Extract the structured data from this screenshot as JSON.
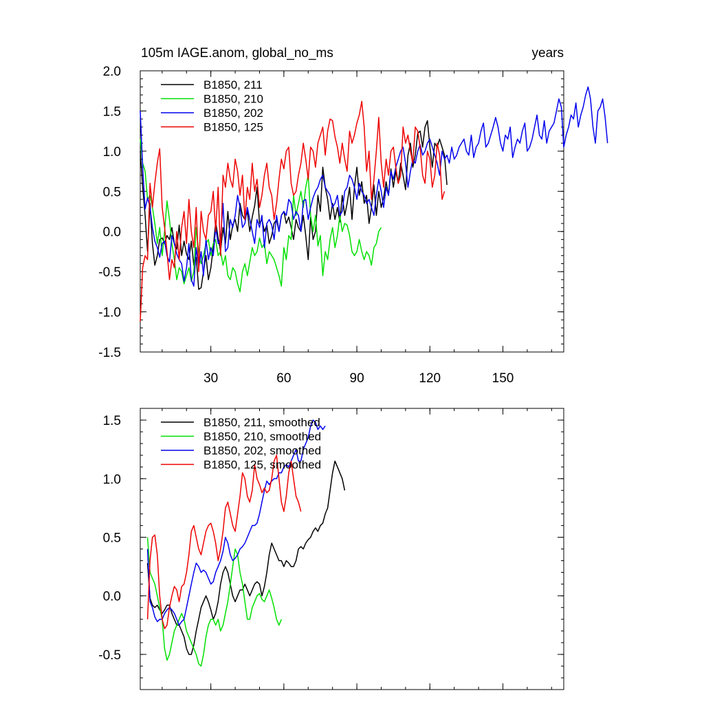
{
  "figure": {
    "title_left": "105m IAGE.anom, global_no_ms",
    "title_right": "years",
    "colors": {
      "211": "#000000",
      "210": "#00e000",
      "202": "#0000ee",
      "125": "#ee0000"
    }
  },
  "chart_data": [
    {
      "type": "line",
      "title": "105m IAGE.anom, global_no_ms",
      "right_title": "years",
      "xlim": [
        1,
        175
      ],
      "ylim": [
        -1.5,
        2.0
      ],
      "x_ticks": [
        30,
        60,
        90,
        120,
        150
      ],
      "x_tick_labels": [
        "30",
        "60",
        "90",
        "120",
        "150"
      ],
      "y_ticks": [
        -1.5,
        -1.0,
        -0.5,
        0.0,
        0.5,
        1.0,
        1.5,
        2.0
      ],
      "y_tick_labels": [
        "-1.5",
        "-1.0",
        "-0.5",
        "0.0",
        "0.5",
        "1.0",
        "1.5",
        "2.0"
      ],
      "legend": [
        {
          "label": "B1850, 211",
          "color": "#000000"
        },
        {
          "label": "B1850, 210",
          "color": "#00e000"
        },
        {
          "label": "B1850, 202",
          "color": "#0000ee"
        },
        {
          "label": "B1850, 125",
          "color": "#ee0000"
        }
      ],
      "legend_position": "top-left",
      "series": [
        {
          "name": "B1850, 211",
          "color": "#000000",
          "x_start": 1,
          "values": [
            1.0,
            0.55,
            0.2,
            -0.25,
            0.35,
            -0.15,
            -0.42,
            -0.3,
            -0.1,
            -0.08,
            -0.15,
            -0.05,
            -0.1,
            0.05,
            -0.15,
            -0.22,
            0.08,
            -0.3,
            -0.12,
            -0.28,
            -0.35,
            -0.12,
            -0.42,
            -0.32,
            -0.72,
            -0.7,
            -0.5,
            -0.3,
            -0.6,
            -0.45,
            -0.2,
            0.12,
            -0.08,
            -0.25,
            0.05,
            -0.15,
            0.25,
            -0.1,
            0.08,
            0.15,
            0.0,
            0.35,
            0.2,
            0.15,
            0.25,
            0.0,
            0.18,
            0.32,
            0.55,
            0.1,
            0.15,
            0.0,
            0.08,
            -0.15,
            -0.05,
            0.1,
            0.15,
            0.0,
            0.2,
            0.25,
            0.1,
            0.18,
            0.05,
            -0.1,
            0.15,
            0.05,
            0.0,
            0.2,
            -0.05,
            -0.35,
            0.18,
            -0.1,
            0.0,
            0.45,
            0.25,
            0.8,
            0.55,
            0.4,
            0.15,
            0.35,
            0.15,
            0.3,
            0.12,
            0.45,
            0.2,
            0.35,
            0.55,
            0.15,
            0.55,
            0.8,
            0.45,
            0.62,
            0.35,
            0.45,
            0.1,
            0.3,
            0.58,
            0.2,
            0.5,
            0.3,
            0.42,
            0.62,
            0.45,
            0.78,
            0.55,
            0.75,
            0.6,
            0.85,
            0.7,
            0.52,
            0.95,
            1.1,
            0.8,
            0.95,
            1.22,
            1.25,
            1.05,
            1.3,
            1.38,
            1.05,
            0.8,
            1.1,
            1.05,
            1.15,
            1.05,
            0.95,
            0.58
          ]
        },
        {
          "name": "B1850, 210",
          "color": "#00e000",
          "x_start": 1,
          "values": [
            1.15,
            0.85,
            0.75,
            0.4,
            0.45,
            0.3,
            0.1,
            -0.15,
            0.05,
            -0.3,
            0.0,
            0.38,
            0.15,
            -0.15,
            -0.35,
            -0.6,
            -0.45,
            -0.5,
            -0.65,
            -0.55,
            -0.45,
            -0.62,
            -0.5,
            0.05,
            -0.25,
            -0.4,
            -0.3,
            -0.15,
            -0.1,
            -0.3,
            -0.15,
            -0.1,
            -0.3,
            -0.25,
            -0.42,
            -0.3,
            -0.55,
            -0.6,
            -0.45,
            -0.5,
            -0.65,
            -0.75,
            -0.5,
            -0.4,
            -0.55,
            -0.38,
            -0.2,
            -0.3,
            -0.25,
            -0.08,
            -0.2,
            -0.15,
            -0.4,
            -0.25,
            -0.3,
            -0.35,
            -0.45,
            -0.55,
            -0.68,
            -0.2,
            -0.35,
            -0.05,
            -0.1,
            0.45,
            0.2,
            0.35,
            0.5,
            0.3,
            0.55,
            0.7,
            0.2,
            0.0,
            0.2,
            -0.18,
            -0.05,
            -0.55,
            -0.25,
            -0.35,
            -0.1,
            0.05,
            -0.2,
            -0.05,
            0.2,
            0.0,
            0.1,
            0.08,
            -0.05,
            -0.25,
            -0.3,
            -0.25,
            -0.1,
            -0.25,
            -0.35,
            -0.25,
            -0.3,
            -0.42,
            -0.2,
            -0.15,
            0.0,
            0.05
          ]
        },
        {
          "name": "B1850, 202",
          "color": "#0000ee",
          "x_start": 1,
          "values": [
            1.5,
            0.8,
            0.28,
            0.42,
            0.3,
            0.05,
            -0.12,
            -0.2,
            -0.32,
            -0.15,
            -0.12,
            -0.3,
            -0.38,
            -0.05,
            -0.15,
            -0.28,
            -0.35,
            -0.4,
            -0.62,
            -0.45,
            -0.15,
            -0.6,
            -0.68,
            -0.2,
            -0.45,
            -0.25,
            -0.55,
            -0.1,
            -0.35,
            -0.2,
            -0.3,
            0.05,
            -0.15,
            -0.1,
            0.35,
            -0.25,
            -0.2,
            0.15,
            0.05,
            0.2,
            0.45,
            0.3,
            0.05,
            0.1,
            0.3,
            0.15,
            0.0,
            -0.15,
            0.15,
            0.05,
            0.2,
            -0.2,
            0.1,
            0.15,
            0.08,
            -0.1,
            0.2,
            0.0,
            0.2,
            0.25,
            0.2,
            0.4,
            0.35,
            0.15,
            0.25,
            0.2,
            0.0,
            0.38,
            0.4,
            0.15,
            0.3,
            0.42,
            0.5,
            0.55,
            0.65,
            0.7,
            0.55,
            0.5,
            0.45,
            0.3,
            0.35,
            0.45,
            0.2,
            0.25,
            0.5,
            0.55,
            0.7,
            0.65,
            0.55,
            0.4,
            0.6,
            0.5,
            0.45,
            0.35,
            0.4,
            0.3,
            0.2,
            0.45,
            0.65,
            0.5,
            0.3,
            0.55,
            0.45,
            0.75,
            0.65,
            0.8,
            0.9,
            1.0,
            1.05,
            0.85,
            0.55,
            0.75,
            0.9,
            0.85,
            1.0,
            1.08,
            0.95,
            1.0,
            1.1,
            1.15,
            1.05,
            0.95,
            0.85,
            0.7,
            1.0,
            0.9,
            0.95,
            0.85,
            1.05,
            0.9,
            0.95,
            1.05,
            1.1,
            1.15,
            1.0,
            0.95,
            1.2,
            0.92,
            1.05,
            1.1,
            1.25,
            1.35,
            1.05,
            1.1,
            1.2,
            1.3,
            1.42,
            1.3,
            1.1,
            1.0,
            1.2,
            1.15,
            1.3,
            0.92,
            1.05,
            1.15,
            1.1,
            1.25,
            1.35,
            1.0,
            1.05,
            1.15,
            1.3,
            1.45,
            1.2,
            1.15,
            1.38,
            1.1,
            1.25,
            1.3,
            1.35,
            1.5,
            1.65,
            1.55,
            1.05,
            1.2,
            1.3,
            1.45,
            1.4,
            1.6,
            1.3,
            1.45,
            1.55,
            1.7,
            1.8,
            1.65,
            1.3,
            1.1,
            1.5,
            1.55,
            1.65,
            1.42,
            1.1
          ]
        },
        {
          "name": "B1850, 125",
          "color": "#ee0000",
          "x_start": 1,
          "values": [
            -1.12,
            -0.45,
            -0.3,
            -0.35,
            0.6,
            0.3,
            0.6,
            0.85,
            1.03,
            0.3,
            0.05,
            -0.25,
            -0.6,
            -0.35,
            -0.45,
            0.0,
            -0.35,
            0.05,
            0.25,
            -0.15,
            0.4,
            0.0,
            -0.2,
            0.3,
            -0.5,
            0.25,
            0.0,
            -0.1,
            0.2,
            0.25,
            0.5,
            0.0,
            0.55,
            -0.3,
            0.7,
            0.55,
            0.85,
            0.65,
            0.55,
            0.9,
            0.75,
            0.45,
            0.7,
            0.15,
            0.55,
            0.4,
            0.85,
            0.5,
            0.65,
            0.3,
            0.45,
            0.7,
            0.85,
            0.55,
            0.45,
            0.15,
            0.35,
            0.65,
            0.9,
            0.78,
            1.0,
            1.05,
            0.6,
            0.45,
            0.5,
            0.7,
            0.85,
            1.1,
            0.9,
            0.65,
            1.05,
            1.0,
            0.8,
            1.1,
            1.2,
            1.3,
            0.95,
            1.25,
            1.4,
            1.38,
            1.18,
            1.05,
            0.85,
            1.1,
            0.9,
            0.75,
            1.25,
            1.1,
            1.2,
            1.35,
            1.45,
            1.62,
            1.3,
            0.75,
            1.0,
            0.4,
            0.65,
            1.0,
            1.42,
            0.85,
            0.55,
            0.9,
            0.7,
            1.0,
            1.05,
            0.8,
            0.6,
            0.7,
            1.3,
            1.1,
            1.2,
            1.0,
            0.85,
            1.3,
            1.25,
            1.05,
            0.7,
            0.6,
            1.0,
            0.9,
            0.55,
            0.7,
            1.1,
            0.95,
            0.4,
            0.5
          ]
        }
      ]
    },
    {
      "type": "line",
      "title": "",
      "xlim": [
        1,
        175
      ],
      "ylim": [
        -0.8,
        1.6
      ],
      "x_ticks": [
        30,
        60,
        90,
        120,
        150
      ],
      "x_tick_labels": [],
      "y_ticks": [
        -0.5,
        0.0,
        0.5,
        1.0,
        1.5
      ],
      "y_tick_labels": [
        "-0.5",
        "0.0",
        "0.5",
        "1.0",
        "1.5"
      ],
      "legend": [
        {
          "label": "B1850, 211, smoothed",
          "color": "#000000"
        },
        {
          "label": "B1850, 210, smoothed",
          "color": "#00e000"
        },
        {
          "label": "B1850, 202, smoothed",
          "color": "#0000ee"
        },
        {
          "label": "B1850, 125, smoothed",
          "color": "#ee0000"
        }
      ],
      "legend_position": "top-left",
      "series": [
        {
          "name": "B1850, 211, smoothed",
          "color": "#000000",
          "x_start": 4,
          "values": [
            0.28,
            -0.02,
            -0.08,
            -0.1,
            -0.08,
            -0.12,
            -0.15,
            -0.12,
            -0.08,
            -0.08,
            -0.15,
            -0.2,
            -0.25,
            -0.25,
            -0.3,
            -0.35,
            -0.45,
            -0.5,
            -0.5,
            -0.42,
            -0.3,
            -0.2,
            -0.1,
            -0.05,
            -0.0,
            -0.05,
            -0.12,
            -0.2,
            -0.15,
            -0.05,
            0.1,
            0.2,
            0.25,
            0.2,
            0.1,
            0.0,
            -0.05,
            0.0,
            0.05,
            0.05,
            0.1,
            0.05,
            0.0,
            0.05,
            0.1,
            0.12,
            0.1,
            0.0,
            0.08,
            0.2,
            0.35,
            0.45,
            0.4,
            0.35,
            0.3,
            0.3,
            0.25,
            0.3,
            0.28,
            0.25,
            0.25,
            0.3,
            0.4,
            0.42,
            0.4,
            0.45,
            0.48,
            0.5,
            0.55,
            0.58,
            0.55,
            0.6,
            0.62,
            0.7,
            0.75,
            0.9,
            1.05,
            1.15,
            1.1,
            1.05,
            1.0,
            0.9
          ]
        },
        {
          "name": "B1850, 210, smoothed",
          "color": "#00e000",
          "x_start": 4,
          "values": [
            0.5,
            0.2,
            0.15,
            0.1,
            0.0,
            -0.1,
            -0.2,
            -0.45,
            -0.55,
            -0.5,
            -0.4,
            -0.3,
            -0.25,
            -0.2,
            -0.15,
            -0.2,
            -0.3,
            -0.35,
            -0.4,
            -0.45,
            -0.5,
            -0.58,
            -0.6,
            -0.5,
            -0.35,
            -0.25,
            -0.2,
            -0.2,
            -0.25,
            -0.2,
            -0.3,
            -0.25,
            -0.15,
            -0.05,
            0.1,
            0.25,
            0.4,
            0.35,
            0.2,
            0.1,
            -0.05,
            -0.2,
            -0.2,
            -0.1,
            -0.05,
            0.0,
            0.02,
            -0.03,
            -0.05,
            0.0,
            0.05,
            -0.02,
            -0.1,
            -0.2,
            -0.25,
            -0.2
          ]
        },
        {
          "name": "B1850, 202, smoothed",
          "color": "#0000ee",
          "x_start": 4,
          "values": [
            0.4,
            -0.05,
            -0.1,
            -0.18,
            -0.22,
            -0.2,
            -0.2,
            -0.15,
            -0.12,
            -0.1,
            -0.12,
            -0.15,
            -0.2,
            -0.25,
            -0.22,
            -0.2,
            -0.1,
            0.0,
            0.1,
            0.2,
            0.28,
            0.25,
            0.2,
            0.22,
            0.2,
            0.15,
            0.1,
            0.12,
            0.2,
            0.25,
            0.3,
            0.38,
            0.5,
            0.45,
            0.35,
            0.3,
            0.32,
            0.35,
            0.4,
            0.42,
            0.45,
            0.5,
            0.55,
            0.6,
            0.6,
            0.62,
            0.7,
            0.8,
            0.9,
            0.98,
            0.95,
            0.98,
            1.0,
            1.0,
            1.05,
            1.05,
            1.1,
            1.12,
            1.1,
            1.15,
            1.2,
            1.25,
            1.15,
            1.15,
            1.25,
            1.3,
            1.35,
            1.45,
            1.5,
            1.48,
            1.42,
            1.45,
            1.42,
            1.45
          ]
        },
        {
          "name": "B1850, 125, smoothed",
          "color": "#ee0000",
          "x_start": 4,
          "values": [
            -0.2,
            0.3,
            0.5,
            0.52,
            0.35,
            0.0,
            -0.2,
            -0.28,
            -0.25,
            -0.1,
            0.0,
            0.08,
            0.05,
            -0.05,
            0.08,
            0.1,
            0.2,
            0.35,
            0.55,
            0.6,
            0.5,
            0.4,
            0.35,
            0.45,
            0.55,
            0.6,
            0.62,
            0.55,
            0.45,
            0.3,
            0.4,
            0.55,
            0.75,
            0.8,
            0.7,
            0.6,
            0.55,
            0.7,
            0.85,
            1.05,
            1.0,
            0.85,
            0.8,
            0.9,
            1.12,
            1.0,
            0.95,
            0.88,
            0.92,
            0.88,
            0.9,
            1.0,
            1.15,
            1.2,
            1.0,
            0.8,
            0.72,
            0.85,
            1.05,
            1.15,
            1.0,
            0.85,
            0.8,
            0.72
          ]
        }
      ]
    }
  ]
}
